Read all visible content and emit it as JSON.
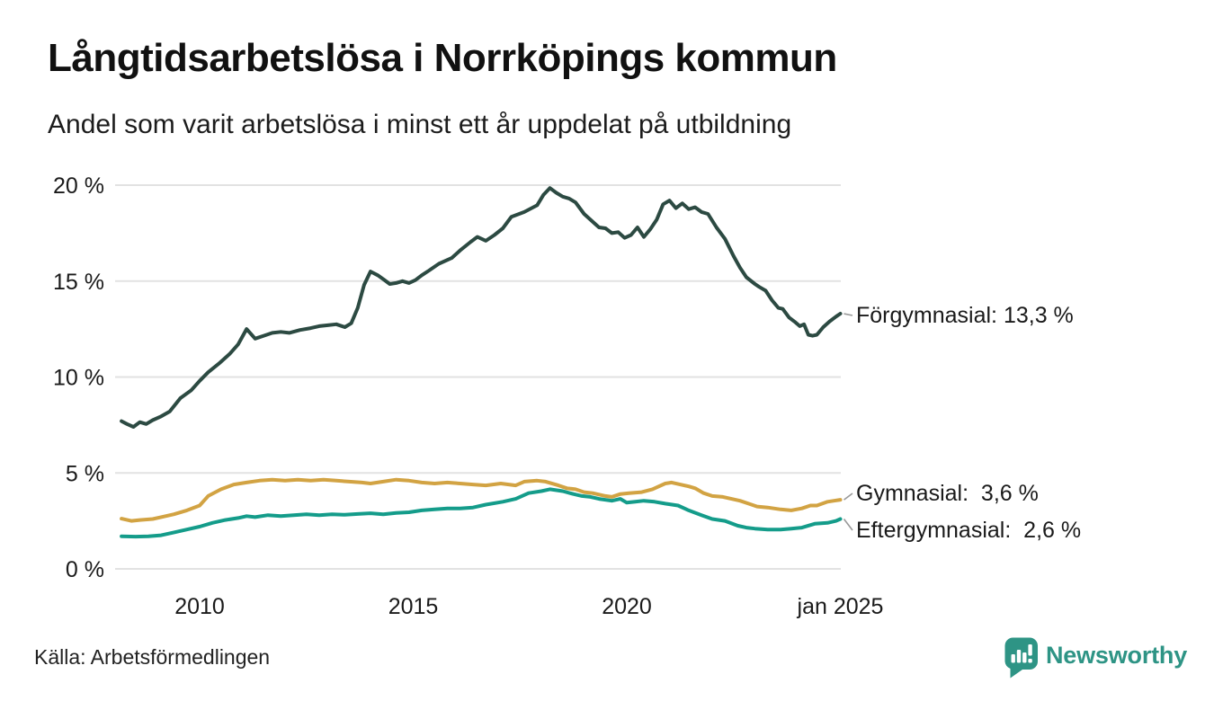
{
  "header": {
    "title": "Långtidsarbetslösa i Norrköpings kommun",
    "subtitle": "Andel som varit arbetslösa i minst ett år uppdelat på utbildning"
  },
  "footer": {
    "source": "Källa: Arbetsförmedlingen",
    "brand": {
      "name": "Newsworthy",
      "color": "#2e9485",
      "icon": "bar-chart-speech-bubble-icon"
    }
  },
  "chart_data": {
    "type": "line",
    "title": "Långtidsarbetslösa i Norrköpings kommun",
    "subtitle": "Andel som varit arbetslösa i minst ett år uppdelat på utbildning",
    "source": "Källa: Arbetsförmedlingen",
    "grid": "horizontal",
    "legend_position": "labels-at-line-end",
    "x_axis": {
      "range": [
        2008.1,
        2025.0
      ],
      "ticks": [
        {
          "value": 2010,
          "label": "2010"
        },
        {
          "value": 2015,
          "label": "2015"
        },
        {
          "value": 2020,
          "label": "2020"
        },
        {
          "value": 2025,
          "label": "jan 2025"
        }
      ]
    },
    "y_axis": {
      "unit": "%",
      "range": [
        0,
        20
      ],
      "ticks": [
        {
          "value": 20,
          "label": "20 %"
        },
        {
          "value": 15,
          "label": "15 %"
        },
        {
          "value": 10,
          "label": "10 %"
        },
        {
          "value": 5,
          "label": "5 %"
        },
        {
          "value": 0,
          "label": "0 %"
        }
      ]
    },
    "series": [
      {
        "name": "Förgymnasial",
        "color": "#2c4a42",
        "final_value": "13,3 %",
        "end_label": "Förgymnasial: 13,3 %",
        "points": [
          [
            2008.17,
            7.7
          ],
          [
            2008.3,
            7.55
          ],
          [
            2008.45,
            7.4
          ],
          [
            2008.6,
            7.65
          ],
          [
            2008.75,
            7.55
          ],
          [
            2008.9,
            7.75
          ],
          [
            2009.1,
            7.95
          ],
          [
            2009.3,
            8.2
          ],
          [
            2009.55,
            8.9
          ],
          [
            2009.8,
            9.3
          ],
          [
            2010.0,
            9.8
          ],
          [
            2010.2,
            10.25
          ],
          [
            2010.45,
            10.7
          ],
          [
            2010.7,
            11.2
          ],
          [
            2010.9,
            11.7
          ],
          [
            2011.1,
            12.5
          ],
          [
            2011.3,
            12.0
          ],
          [
            2011.5,
            12.15
          ],
          [
            2011.7,
            12.3
          ],
          [
            2011.9,
            12.35
          ],
          [
            2012.1,
            12.3
          ],
          [
            2012.35,
            12.45
          ],
          [
            2012.6,
            12.55
          ],
          [
            2012.8,
            12.65
          ],
          [
            2013.0,
            12.7
          ],
          [
            2013.2,
            12.75
          ],
          [
            2013.4,
            12.6
          ],
          [
            2013.55,
            12.8
          ],
          [
            2013.7,
            13.6
          ],
          [
            2013.85,
            14.8
          ],
          [
            2014.0,
            15.5
          ],
          [
            2014.17,
            15.3
          ],
          [
            2014.3,
            15.1
          ],
          [
            2014.45,
            14.85
          ],
          [
            2014.6,
            14.9
          ],
          [
            2014.75,
            15.0
          ],
          [
            2014.9,
            14.9
          ],
          [
            2015.05,
            15.05
          ],
          [
            2015.2,
            15.3
          ],
          [
            2015.37,
            15.55
          ],
          [
            2015.6,
            15.9
          ],
          [
            2015.9,
            16.2
          ],
          [
            2016.1,
            16.6
          ],
          [
            2016.35,
            17.05
          ],
          [
            2016.5,
            17.3
          ],
          [
            2016.7,
            17.1
          ],
          [
            2016.9,
            17.4
          ],
          [
            2017.1,
            17.75
          ],
          [
            2017.3,
            18.35
          ],
          [
            2017.6,
            18.6
          ],
          [
            2017.9,
            18.95
          ],
          [
            2018.05,
            19.5
          ],
          [
            2018.2,
            19.85
          ],
          [
            2018.35,
            19.6
          ],
          [
            2018.5,
            19.4
          ],
          [
            2018.65,
            19.3
          ],
          [
            2018.8,
            19.1
          ],
          [
            2019.0,
            18.5
          ],
          [
            2019.2,
            18.1
          ],
          [
            2019.35,
            17.8
          ],
          [
            2019.5,
            17.75
          ],
          [
            2019.65,
            17.5
          ],
          [
            2019.8,
            17.55
          ],
          [
            2019.95,
            17.25
          ],
          [
            2020.1,
            17.4
          ],
          [
            2020.25,
            17.8
          ],
          [
            2020.4,
            17.3
          ],
          [
            2020.55,
            17.7
          ],
          [
            2020.7,
            18.2
          ],
          [
            2020.85,
            19.0
          ],
          [
            2021.0,
            19.2
          ],
          [
            2021.15,
            18.8
          ],
          [
            2021.3,
            19.05
          ],
          [
            2021.45,
            18.75
          ],
          [
            2021.6,
            18.85
          ],
          [
            2021.75,
            18.6
          ],
          [
            2021.9,
            18.5
          ],
          [
            2022.1,
            17.8
          ],
          [
            2022.3,
            17.2
          ],
          [
            2022.5,
            16.3
          ],
          [
            2022.65,
            15.7
          ],
          [
            2022.8,
            15.2
          ],
          [
            2023.0,
            14.85
          ],
          [
            2023.1,
            14.7
          ],
          [
            2023.25,
            14.5
          ],
          [
            2023.4,
            14.0
          ],
          [
            2023.55,
            13.6
          ],
          [
            2023.65,
            13.55
          ],
          [
            2023.8,
            13.1
          ],
          [
            2023.95,
            12.85
          ],
          [
            2024.05,
            12.65
          ],
          [
            2024.15,
            12.75
          ],
          [
            2024.25,
            12.2
          ],
          [
            2024.35,
            12.15
          ],
          [
            2024.45,
            12.2
          ],
          [
            2024.6,
            12.6
          ],
          [
            2024.75,
            12.9
          ],
          [
            2024.9,
            13.15
          ],
          [
            2025.0,
            13.3
          ]
        ]
      },
      {
        "name": "Gymnasial",
        "color": "#d2a343",
        "final_value": "3,6 %",
        "end_label": "Gymnasial:  3,6 %",
        "points": [
          [
            2008.17,
            2.62
          ],
          [
            2008.4,
            2.5
          ],
          [
            2008.6,
            2.55
          ],
          [
            2008.9,
            2.6
          ],
          [
            2009.1,
            2.7
          ],
          [
            2009.4,
            2.85
          ],
          [
            2009.7,
            3.05
          ],
          [
            2010.0,
            3.3
          ],
          [
            2010.2,
            3.8
          ],
          [
            2010.5,
            4.15
          ],
          [
            2010.8,
            4.4
          ],
          [
            2011.1,
            4.5
          ],
          [
            2011.4,
            4.6
          ],
          [
            2011.7,
            4.65
          ],
          [
            2012.0,
            4.6
          ],
          [
            2012.3,
            4.65
          ],
          [
            2012.6,
            4.6
          ],
          [
            2012.9,
            4.65
          ],
          [
            2013.2,
            4.6
          ],
          [
            2013.5,
            4.55
          ],
          [
            2013.8,
            4.5
          ],
          [
            2014.0,
            4.45
          ],
          [
            2014.3,
            4.55
          ],
          [
            2014.6,
            4.65
          ],
          [
            2014.9,
            4.6
          ],
          [
            2015.2,
            4.5
          ],
          [
            2015.5,
            4.45
          ],
          [
            2015.8,
            4.5
          ],
          [
            2016.1,
            4.45
          ],
          [
            2016.4,
            4.4
          ],
          [
            2016.7,
            4.35
          ],
          [
            2017.05,
            4.45
          ],
          [
            2017.4,
            4.35
          ],
          [
            2017.6,
            4.55
          ],
          [
            2017.9,
            4.6
          ],
          [
            2018.1,
            4.55
          ],
          [
            2018.4,
            4.35
          ],
          [
            2018.6,
            4.2
          ],
          [
            2018.8,
            4.15
          ],
          [
            2019.0,
            4.0
          ],
          [
            2019.2,
            3.95
          ],
          [
            2019.5,
            3.8
          ],
          [
            2019.65,
            3.75
          ],
          [
            2019.85,
            3.9
          ],
          [
            2020.05,
            3.95
          ],
          [
            2020.35,
            4.0
          ],
          [
            2020.6,
            4.15
          ],
          [
            2020.9,
            4.45
          ],
          [
            2021.05,
            4.5
          ],
          [
            2021.25,
            4.4
          ],
          [
            2021.45,
            4.3
          ],
          [
            2021.6,
            4.2
          ],
          [
            2021.8,
            3.95
          ],
          [
            2022.0,
            3.8
          ],
          [
            2022.25,
            3.75
          ],
          [
            2022.45,
            3.65
          ],
          [
            2022.65,
            3.55
          ],
          [
            2022.85,
            3.4
          ],
          [
            2023.05,
            3.25
          ],
          [
            2023.3,
            3.2
          ],
          [
            2023.6,
            3.1
          ],
          [
            2023.85,
            3.05
          ],
          [
            2024.1,
            3.15
          ],
          [
            2024.3,
            3.3
          ],
          [
            2024.45,
            3.3
          ],
          [
            2024.7,
            3.5
          ],
          [
            2024.85,
            3.55
          ],
          [
            2025.0,
            3.6
          ]
        ]
      },
      {
        "name": "Eftergymnasial",
        "color": "#149c8a",
        "final_value": "2,6 %",
        "end_label": "Eftergymnasial:  2,6 %",
        "points": [
          [
            2008.17,
            1.7
          ],
          [
            2008.5,
            1.68
          ],
          [
            2008.8,
            1.7
          ],
          [
            2009.1,
            1.75
          ],
          [
            2009.4,
            1.9
          ],
          [
            2009.7,
            2.05
          ],
          [
            2010.0,
            2.2
          ],
          [
            2010.3,
            2.4
          ],
          [
            2010.6,
            2.55
          ],
          [
            2010.9,
            2.65
          ],
          [
            2011.1,
            2.75
          ],
          [
            2011.3,
            2.7
          ],
          [
            2011.6,
            2.8
          ],
          [
            2011.9,
            2.75
          ],
          [
            2012.2,
            2.8
          ],
          [
            2012.5,
            2.85
          ],
          [
            2012.8,
            2.8
          ],
          [
            2013.1,
            2.85
          ],
          [
            2013.4,
            2.82
          ],
          [
            2013.7,
            2.86
          ],
          [
            2014.0,
            2.9
          ],
          [
            2014.3,
            2.85
          ],
          [
            2014.6,
            2.92
          ],
          [
            2014.9,
            2.95
          ],
          [
            2015.2,
            3.05
          ],
          [
            2015.5,
            3.1
          ],
          [
            2015.8,
            3.15
          ],
          [
            2016.1,
            3.15
          ],
          [
            2016.4,
            3.2
          ],
          [
            2016.7,
            3.35
          ],
          [
            2017.1,
            3.5
          ],
          [
            2017.4,
            3.65
          ],
          [
            2017.7,
            3.95
          ],
          [
            2018.0,
            4.05
          ],
          [
            2018.2,
            4.15
          ],
          [
            2018.5,
            4.05
          ],
          [
            2018.75,
            3.9
          ],
          [
            2018.95,
            3.8
          ],
          [
            2019.15,
            3.75
          ],
          [
            2019.35,
            3.65
          ],
          [
            2019.65,
            3.55
          ],
          [
            2019.85,
            3.65
          ],
          [
            2020.0,
            3.45
          ],
          [
            2020.2,
            3.5
          ],
          [
            2020.4,
            3.55
          ],
          [
            2020.65,
            3.5
          ],
          [
            2020.9,
            3.4
          ],
          [
            2021.2,
            3.3
          ],
          [
            2021.45,
            3.05
          ],
          [
            2021.75,
            2.8
          ],
          [
            2022.0,
            2.6
          ],
          [
            2022.3,
            2.5
          ],
          [
            2022.6,
            2.25
          ],
          [
            2022.8,
            2.15
          ],
          [
            2023.0,
            2.1
          ],
          [
            2023.3,
            2.05
          ],
          [
            2023.6,
            2.05
          ],
          [
            2023.85,
            2.1
          ],
          [
            2024.1,
            2.15
          ],
          [
            2024.4,
            2.35
          ],
          [
            2024.7,
            2.4
          ],
          [
            2024.9,
            2.5
          ],
          [
            2025.0,
            2.6
          ]
        ]
      }
    ]
  }
}
